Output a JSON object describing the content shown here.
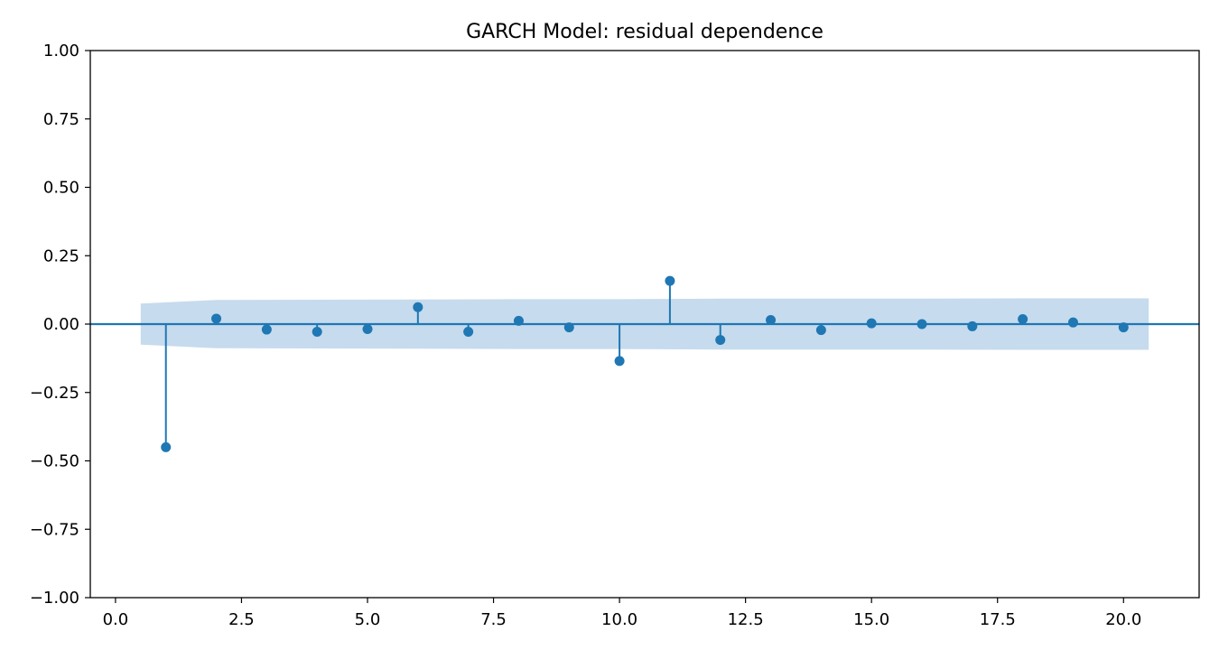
{
  "chart_data": {
    "type": "stem",
    "title": "GARCH Model: residual dependence",
    "xlabel": "",
    "ylabel": "",
    "xlim": [
      -0.5,
      21.5
    ],
    "ylim": [
      -1.0,
      1.0
    ],
    "x_ticks": [
      0.0,
      2.5,
      5.0,
      7.5,
      10.0,
      12.5,
      15.0,
      17.5,
      20.0
    ],
    "x_tick_labels": [
      "0.0",
      "2.5",
      "5.0",
      "7.5",
      "10.0",
      "12.5",
      "15.0",
      "17.5",
      "20.0"
    ],
    "y_ticks": [
      1.0,
      0.75,
      0.5,
      0.25,
      0.0,
      -0.25,
      -0.5,
      -0.75,
      -1.0
    ],
    "y_tick_labels": [
      "1.00",
      "0.75",
      "0.50",
      "0.25",
      "0.00",
      "−0.25",
      "−0.50",
      "−0.75",
      "−1.00"
    ],
    "grid": false,
    "lags": [
      1,
      2,
      3,
      4,
      5,
      6,
      7,
      8,
      9,
      10,
      11,
      12,
      13,
      14,
      15,
      16,
      17,
      18,
      19,
      20
    ],
    "values": [
      -0.45,
      0.02,
      -0.02,
      -0.028,
      -0.018,
      0.062,
      -0.028,
      0.012,
      -0.012,
      -0.135,
      0.158,
      -0.058,
      0.015,
      -0.022,
      0.003,
      0.0,
      -0.008,
      0.018,
      0.006,
      -0.012
    ],
    "confidence_band": {
      "x": [
        0.5,
        2,
        4,
        6,
        8,
        10,
        12,
        14,
        16,
        18,
        20.5
      ],
      "half_width": [
        0.075,
        0.088,
        0.089,
        0.09,
        0.091,
        0.091,
        0.093,
        0.093,
        0.093,
        0.094,
        0.094
      ]
    },
    "colors": {
      "stem": "#1f77b4",
      "band": "#c6dbed",
      "axes": "#000000"
    }
  }
}
